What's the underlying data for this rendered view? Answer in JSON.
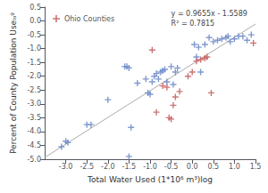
{
  "chart_data": {
    "type": "scatter",
    "xlabel": "Total Water Used (1*10⁶ m³)log",
    "ylabel": "Percent of County Population Useₗₒᵍ",
    "annotations": [
      "y = 0.9655x - 1.5589",
      "R² = 0.7815"
    ],
    "xlim": [
      -3.5,
      1.5
    ],
    "ylim": [
      -5,
      0.5
    ],
    "xticks": [
      {
        "value": -3,
        "label": "-3.0"
      },
      -2.5,
      {
        "value": -2,
        "label": "-2.0"
      },
      -1.5,
      {
        "value": -1,
        "label": "-1.0"
      },
      -0.5,
      {
        "value": 0,
        "label": "0.0"
      },
      0.5,
      {
        "value": 1,
        "label": "1.0"
      },
      1.5
    ],
    "yticks": [
      {
        "value": -5,
        "label": "-5.0"
      },
      -4.5,
      {
        "value": -4,
        "label": "-4.0"
      },
      -3.5,
      {
        "value": -3,
        "label": "-3.0"
      },
      -2.5,
      {
        "value": -2,
        "label": "-2.0"
      },
      -1.5,
      {
        "value": -1,
        "label": "-1.0"
      },
      -0.5,
      {
        "value": 0,
        "label": "0.0"
      },
      0.5
    ],
    "grid": false,
    "legend": "upper left",
    "series": [
      {
        "type": "line",
        "color": "#aaaaaa",
        "x": [
          -3.5,
          1.5
        ],
        "values": [
          -4.93815,
          -0.11065
        ]
      },
      {
        "type": "scatter",
        "marker": "plus",
        "color": "#6080c0",
        "x": [
          -3.1,
          -3.0,
          -2.95,
          -2.5,
          -2.4,
          -2.0,
          -1.6,
          -1.55,
          -1.5,
          -1.5,
          -1.45,
          -1.3,
          -1.1,
          -1.05,
          -1.0,
          -0.95,
          -0.9,
          -0.85,
          -0.8,
          -0.75,
          -0.7,
          -0.65,
          -0.6,
          -0.5,
          -0.45,
          -0.4,
          -0.35,
          0.05,
          0.1,
          0.15,
          0.2,
          0.3,
          0.4,
          0.5,
          0.6,
          0.7,
          0.8,
          0.85,
          0.9,
          1.0,
          1.1,
          1.2,
          1.3,
          1.4
        ],
        "values": [
          -4.55,
          -4.35,
          -4.4,
          -3.75,
          -3.75,
          -2.85,
          -1.65,
          -1.65,
          -1.7,
          -4.9,
          -3.85,
          -2.25,
          -2.1,
          -2.6,
          -2.65,
          -2.2,
          -2.0,
          -1.9,
          -2.1,
          -1.85,
          -1.8,
          -1.75,
          -2.2,
          -1.65,
          -2.3,
          -1.85,
          -1.7,
          -0.85,
          -1.3,
          -0.95,
          -1.85,
          -0.85,
          -0.6,
          -0.75,
          -0.7,
          -0.65,
          -0.6,
          -0.55,
          -0.75,
          -0.65,
          -0.55,
          -0.55,
          -0.7,
          -0.5
        ]
      },
      {
        "type": "scatter",
        "marker": "plus",
        "name": "Ohio Counties",
        "color": "#c05050",
        "x": [
          -0.95,
          -0.85,
          -0.7,
          -0.6,
          -0.55,
          -0.5,
          -0.45,
          -0.4,
          -0.3,
          -0.1,
          0.0,
          0.1,
          0.2,
          0.3,
          0.35,
          0.45,
          1.45
        ],
        "values": [
          -1.05,
          -3.3,
          -2.35,
          -2.4,
          -3.5,
          -3.55,
          -3.05,
          -2.75,
          -2.55,
          -2.0,
          -1.85,
          -1.45,
          -1.4,
          -1.35,
          -1.3,
          -2.6,
          -0.8
        ]
      }
    ]
  }
}
